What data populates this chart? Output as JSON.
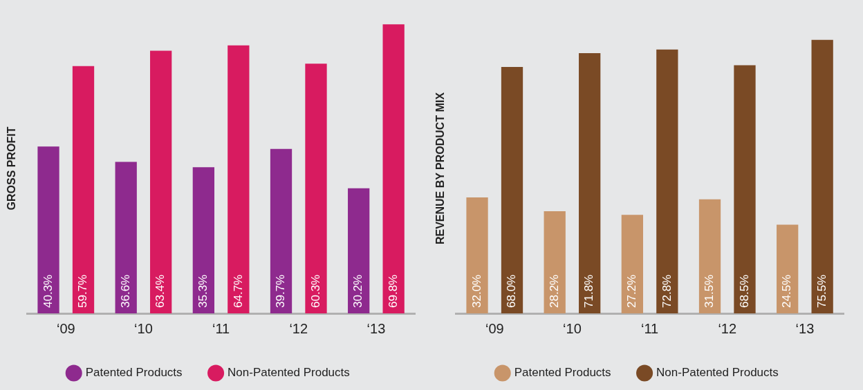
{
  "chart_data": [
    {
      "type": "bar",
      "ylabel": "GROSS PROFIT",
      "categories": [
        "‘09",
        "‘10",
        "‘11",
        "‘12",
        "‘13"
      ],
      "legend": "bottom",
      "grid": false,
      "series": [
        {
          "name": "Patented Products",
          "color": "#8e2a8e",
          "values": [
            40.3,
            36.6,
            35.3,
            39.7,
            30.2
          ],
          "value_labels": [
            "40.3%",
            "36.6%",
            "35.3%",
            "39.7%",
            "30.2%"
          ]
        },
        {
          "name": "Non-Patented Products",
          "color": "#d81b60",
          "values": [
            59.7,
            63.4,
            64.7,
            60.3,
            69.8
          ],
          "value_labels": [
            "59.7%",
            "63.4%",
            "64.7%",
            "60.3%",
            "69.8%"
          ]
        }
      ]
    },
    {
      "type": "bar",
      "ylabel": "REVENUE BY PRODUCT MIX",
      "categories": [
        "‘09",
        "‘10",
        "‘11",
        "‘12",
        "‘13"
      ],
      "legend": "bottom",
      "grid": false,
      "series": [
        {
          "name": "Patented Products",
          "color": "#c8956a",
          "values": [
            32.0,
            28.2,
            27.2,
            31.5,
            24.5
          ],
          "value_labels": [
            "32.0%",
            "28.2%",
            "27.2%",
            "31.5%",
            "24.5%"
          ]
        },
        {
          "name": "Non-Patented Products",
          "color": "#7a4a25",
          "values": [
            68.0,
            71.8,
            72.8,
            68.5,
            75.5
          ],
          "value_labels": [
            "68.0%",
            "71.8%",
            "72.8%",
            "68.5%",
            "75.5%"
          ]
        }
      ]
    }
  ]
}
